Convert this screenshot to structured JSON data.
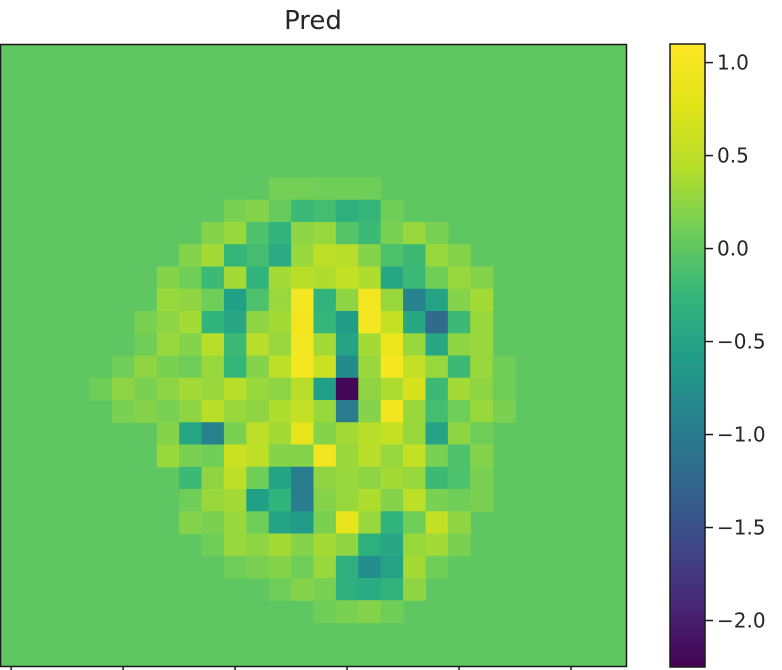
{
  "chart_data": {
    "type": "heatmap",
    "title": "Pred",
    "colormap": "viridis",
    "vmin": -2.25,
    "vmax": 1.1,
    "background_value": 0.0,
    "grid": false,
    "cells_note_units": "row/col indices of a 28x28 image, values in colour-scale units",
    "rows": 28,
    "cols": 28,
    "nonzero_cells": [
      [
        6,
        12,
        0.12
      ],
      [
        6,
        13,
        0.12
      ],
      [
        6,
        14,
        0.1
      ],
      [
        6,
        15,
        0.1
      ],
      [
        6,
        16,
        0.1
      ],
      [
        7,
        10,
        0.15
      ],
      [
        7,
        11,
        0.2
      ],
      [
        7,
        12,
        0.05
      ],
      [
        7,
        13,
        -0.2
      ],
      [
        7,
        14,
        -0.15
      ],
      [
        7,
        15,
        -0.35
      ],
      [
        7,
        16,
        -0.25
      ],
      [
        7,
        17,
        0.1
      ],
      [
        8,
        9,
        0.2
      ],
      [
        8,
        10,
        0.3
      ],
      [
        8,
        11,
        -0.1
      ],
      [
        8,
        12,
        -0.3
      ],
      [
        8,
        13,
        0.25
      ],
      [
        8,
        14,
        0.3
      ],
      [
        8,
        15,
        -0.05
      ],
      [
        8,
        16,
        -0.2
      ],
      [
        8,
        17,
        0.15
      ],
      [
        8,
        18,
        0.3
      ],
      [
        8,
        19,
        0.15
      ],
      [
        9,
        8,
        0.2
      ],
      [
        9,
        9,
        0.35
      ],
      [
        9,
        10,
        -0.25
      ],
      [
        9,
        11,
        -0.15
      ],
      [
        9,
        12,
        -0.4
      ],
      [
        9,
        13,
        0.3
      ],
      [
        9,
        14,
        0.5
      ],
      [
        9,
        15,
        0.45
      ],
      [
        9,
        16,
        0.2
      ],
      [
        9,
        17,
        -0.1
      ],
      [
        9,
        18,
        -0.2
      ],
      [
        9,
        19,
        0.3
      ],
      [
        9,
        20,
        0.2
      ],
      [
        10,
        7,
        0.2
      ],
      [
        10,
        8,
        0.1
      ],
      [
        10,
        9,
        -0.2
      ],
      [
        10,
        10,
        0.35
      ],
      [
        10,
        11,
        -0.3
      ],
      [
        10,
        12,
        0.35
      ],
      [
        10,
        13,
        0.45
      ],
      [
        10,
        14,
        0.4
      ],
      [
        10,
        15,
        0.55
      ],
      [
        10,
        16,
        0.4
      ],
      [
        10,
        17,
        -0.45
      ],
      [
        10,
        18,
        -0.2
      ],
      [
        10,
        19,
        0.1
      ],
      [
        10,
        20,
        0.3
      ],
      [
        10,
        21,
        0.2
      ],
      [
        11,
        7,
        0.3
      ],
      [
        11,
        8,
        0.25
      ],
      [
        11,
        9,
        0.1
      ],
      [
        11,
        10,
        -0.55
      ],
      [
        11,
        11,
        -0.1
      ],
      [
        11,
        12,
        0.3
      ],
      [
        11,
        13,
        1.0
      ],
      [
        11,
        14,
        -0.3
      ],
      [
        11,
        15,
        0.25
      ],
      [
        11,
        16,
        1.0
      ],
      [
        11,
        17,
        0.3
      ],
      [
        11,
        18,
        -0.9
      ],
      [
        11,
        19,
        -0.5
      ],
      [
        11,
        20,
        0.2
      ],
      [
        11,
        21,
        0.35
      ],
      [
        12,
        6,
        0.15
      ],
      [
        12,
        7,
        0.25
      ],
      [
        12,
        8,
        0.35
      ],
      [
        12,
        9,
        -0.3
      ],
      [
        12,
        10,
        -0.45
      ],
      [
        12,
        11,
        0.25
      ],
      [
        12,
        12,
        0.35
      ],
      [
        12,
        13,
        0.95
      ],
      [
        12,
        14,
        -0.25
      ],
      [
        12,
        15,
        -0.6
      ],
      [
        12,
        16,
        1.0
      ],
      [
        12,
        17,
        0.55
      ],
      [
        12,
        18,
        -0.45
      ],
      [
        12,
        19,
        -1.2
      ],
      [
        12,
        20,
        -0.2
      ],
      [
        12,
        21,
        0.3
      ],
      [
        13,
        6,
        0.1
      ],
      [
        13,
        7,
        0.3
      ],
      [
        13,
        8,
        0.2
      ],
      [
        13,
        9,
        0.45
      ],
      [
        13,
        10,
        -0.2
      ],
      [
        13,
        11,
        0.45
      ],
      [
        13,
        12,
        0.3
      ],
      [
        13,
        13,
        1.0
      ],
      [
        13,
        14,
        0.35
      ],
      [
        13,
        15,
        -0.5
      ],
      [
        13,
        16,
        0.35
      ],
      [
        13,
        17,
        0.9
      ],
      [
        13,
        18,
        0.3
      ],
      [
        13,
        19,
        -0.45
      ],
      [
        13,
        20,
        0.25
      ],
      [
        13,
        21,
        0.3
      ],
      [
        14,
        5,
        0.1
      ],
      [
        14,
        6,
        0.25
      ],
      [
        14,
        7,
        0.15
      ],
      [
        14,
        8,
        0.1
      ],
      [
        14,
        9,
        0.3
      ],
      [
        14,
        10,
        -0.25
      ],
      [
        14,
        11,
        0.2
      ],
      [
        14,
        12,
        0.5
      ],
      [
        14,
        13,
        1.0
      ],
      [
        14,
        14,
        0.6
      ],
      [
        14,
        15,
        -0.8
      ],
      [
        14,
        16,
        0.3
      ],
      [
        14,
        17,
        1.0
      ],
      [
        14,
        18,
        0.55
      ],
      [
        14,
        19,
        0.3
      ],
      [
        14,
        20,
        -0.2
      ],
      [
        14,
        21,
        0.3
      ],
      [
        14,
        22,
        0.1
      ],
      [
        15,
        4,
        0.1
      ],
      [
        15,
        5,
        0.25
      ],
      [
        15,
        6,
        0.15
      ],
      [
        15,
        7,
        0.25
      ],
      [
        15,
        8,
        0.35
      ],
      [
        15,
        9,
        0.3
      ],
      [
        15,
        10,
        0.45
      ],
      [
        15,
        11,
        0.3
      ],
      [
        15,
        12,
        0.25
      ],
      [
        15,
        13,
        0.45
      ],
      [
        15,
        14,
        -0.55
      ],
      [
        15,
        15,
        -2.2
      ],
      [
        15,
        16,
        0.25
      ],
      [
        15,
        17,
        0.4
      ],
      [
        15,
        18,
        0.7
      ],
      [
        15,
        19,
        -0.2
      ],
      [
        15,
        20,
        0.35
      ],
      [
        15,
        21,
        0.25
      ],
      [
        15,
        22,
        0.1
      ],
      [
        16,
        5,
        0.15
      ],
      [
        16,
        6,
        0.2
      ],
      [
        16,
        7,
        0.15
      ],
      [
        16,
        8,
        0.25
      ],
      [
        16,
        9,
        0.45
      ],
      [
        16,
        10,
        0.3
      ],
      [
        16,
        11,
        0.25
      ],
      [
        16,
        12,
        0.4
      ],
      [
        16,
        13,
        0.55
      ],
      [
        16,
        14,
        0.3
      ],
      [
        16,
        15,
        -1.0
      ],
      [
        16,
        16,
        0.2
      ],
      [
        16,
        17,
        0.95
      ],
      [
        16,
        18,
        0.3
      ],
      [
        16,
        19,
        -0.15
      ],
      [
        16,
        20,
        0.1
      ],
      [
        16,
        21,
        0.3
      ],
      [
        16,
        22,
        0.15
      ],
      [
        17,
        7,
        0.2
      ],
      [
        17,
        8,
        -0.45
      ],
      [
        17,
        9,
        -0.9
      ],
      [
        17,
        10,
        0.15
      ],
      [
        17,
        11,
        0.5
      ],
      [
        17,
        12,
        0.35
      ],
      [
        17,
        13,
        0.85
      ],
      [
        17,
        14,
        0.2
      ],
      [
        17,
        15,
        0.35
      ],
      [
        17,
        16,
        0.45
      ],
      [
        17,
        17,
        0.55
      ],
      [
        17,
        18,
        0.3
      ],
      [
        17,
        19,
        -0.5
      ],
      [
        17,
        20,
        0.25
      ],
      [
        17,
        21,
        0.1
      ],
      [
        18,
        7,
        0.3
      ],
      [
        18,
        8,
        0.15
      ],
      [
        18,
        9,
        0.1
      ],
      [
        18,
        10,
        0.6
      ],
      [
        18,
        11,
        0.5
      ],
      [
        18,
        12,
        0.2
      ],
      [
        18,
        13,
        0.2
      ],
      [
        18,
        14,
        0.95
      ],
      [
        18,
        15,
        0.3
      ],
      [
        18,
        16,
        0.45
      ],
      [
        18,
        17,
        0.3
      ],
      [
        18,
        18,
        0.55
      ],
      [
        18,
        19,
        0.15
      ],
      [
        18,
        20,
        -0.1
      ],
      [
        18,
        21,
        0.2
      ],
      [
        19,
        8,
        -0.2
      ],
      [
        19,
        9,
        0.25
      ],
      [
        19,
        10,
        0.5
      ],
      [
        19,
        11,
        0.1
      ],
      [
        19,
        12,
        -0.5
      ],
      [
        19,
        13,
        -1.0
      ],
      [
        19,
        14,
        0.25
      ],
      [
        19,
        15,
        0.3
      ],
      [
        19,
        16,
        0.25
      ],
      [
        19,
        17,
        0.35
      ],
      [
        19,
        18,
        0.3
      ],
      [
        19,
        19,
        -0.2
      ],
      [
        19,
        20,
        -0.1
      ],
      [
        19,
        21,
        0.15
      ],
      [
        20,
        8,
        0.1
      ],
      [
        20,
        9,
        0.3
      ],
      [
        20,
        10,
        0.35
      ],
      [
        20,
        11,
        -0.55
      ],
      [
        20,
        12,
        -0.3
      ],
      [
        20,
        13,
        -1.0
      ],
      [
        20,
        14,
        0.2
      ],
      [
        20,
        15,
        0.3
      ],
      [
        20,
        16,
        0.4
      ],
      [
        20,
        17,
        0.2
      ],
      [
        20,
        18,
        0.5
      ],
      [
        20,
        19,
        0.15
      ],
      [
        20,
        20,
        0.1
      ],
      [
        20,
        21,
        0.15
      ],
      [
        21,
        8,
        0.2
      ],
      [
        21,
        9,
        0.15
      ],
      [
        21,
        10,
        0.3
      ],
      [
        21,
        11,
        0.1
      ],
      [
        21,
        12,
        -0.5
      ],
      [
        21,
        13,
        -0.6
      ],
      [
        21,
        14,
        0.15
      ],
      [
        21,
        15,
        0.85
      ],
      [
        21,
        16,
        0.3
      ],
      [
        21,
        17,
        -0.3
      ],
      [
        21,
        18,
        0.1
      ],
      [
        21,
        19,
        0.55
      ],
      [
        21,
        20,
        0.25
      ],
      [
        22,
        9,
        0.1
      ],
      [
        22,
        10,
        0.3
      ],
      [
        22,
        11,
        0.25
      ],
      [
        22,
        12,
        0.35
      ],
      [
        22,
        13,
        0.2
      ],
      [
        22,
        14,
        0.35
      ],
      [
        22,
        15,
        0.25
      ],
      [
        22,
        16,
        -0.35
      ],
      [
        22,
        17,
        -0.45
      ],
      [
        22,
        18,
        0.3
      ],
      [
        22,
        19,
        0.35
      ],
      [
        22,
        20,
        0.15
      ],
      [
        23,
        10,
        0.1
      ],
      [
        23,
        11,
        0.15
      ],
      [
        23,
        12,
        0.2
      ],
      [
        23,
        13,
        0.1
      ],
      [
        23,
        14,
        0.3
      ],
      [
        23,
        15,
        -0.35
      ],
      [
        23,
        16,
        -0.75
      ],
      [
        23,
        17,
        -0.5
      ],
      [
        23,
        18,
        0.35
      ],
      [
        23,
        19,
        0.1
      ],
      [
        24,
        12,
        0.1
      ],
      [
        24,
        13,
        0.2
      ],
      [
        24,
        14,
        0.15
      ],
      [
        24,
        15,
        -0.35
      ],
      [
        24,
        16,
        -0.4
      ],
      [
        24,
        17,
        -0.3
      ],
      [
        24,
        18,
        0.25
      ],
      [
        25,
        14,
        0.1
      ],
      [
        25,
        15,
        0.15
      ],
      [
        25,
        16,
        0.2
      ],
      [
        25,
        17,
        0.1
      ]
    ],
    "colorbar": {
      "range": [
        -2.25,
        1.1
      ],
      "ticks": [
        1.0,
        0.5,
        0.0,
        -0.5,
        -1.0,
        -1.5,
        -2.0
      ],
      "tick_labels": [
        "1.0",
        "0.5",
        "0.0",
        "−0.5",
        "−1.0",
        "−1.5",
        "−2.0"
      ]
    }
  }
}
